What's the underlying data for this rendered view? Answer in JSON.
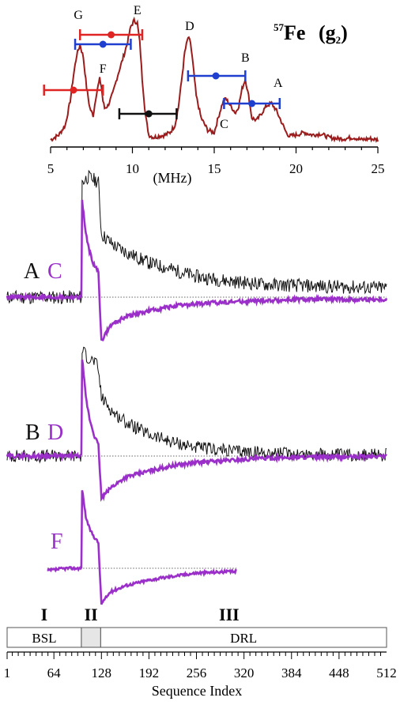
{
  "chart_data": [
    {
      "type": "line",
      "title": "57Fe (g2)",
      "title_parts": {
        "sup": "57",
        "element": "Fe",
        "paren_open": "(",
        "g": "g",
        "sub": "2",
        "paren_close": ")"
      },
      "xlabel": "(MHz)",
      "ylabel": "",
      "xlim": [
        5,
        25
      ],
      "x_ticks": [
        5,
        10,
        15,
        20,
        25
      ],
      "grid": false,
      "series": [
        {
          "color": "#9b1c1c",
          "x": [
            5.0,
            5.5,
            5.9,
            6.2,
            6.4,
            6.6,
            6.8,
            7.0,
            7.2,
            7.4,
            7.6,
            7.8,
            8.0,
            8.1,
            8.2,
            8.3,
            8.5,
            8.8,
            9.1,
            9.4,
            9.7,
            9.9,
            10.1,
            10.3,
            10.45,
            10.6,
            10.8,
            11.0,
            11.3,
            11.6,
            12.0,
            12.3,
            12.6,
            12.8,
            13.0,
            13.2,
            13.4,
            13.55,
            13.7,
            13.9,
            14.2,
            14.6,
            15.0,
            15.2,
            15.5,
            15.7,
            16.0,
            16.3,
            16.5,
            16.7,
            16.9,
            17.1,
            17.3,
            17.6,
            17.9,
            18.2,
            18.5,
            18.8,
            19.0,
            19.2,
            19.4,
            19.6,
            20.0,
            20.5,
            21.0,
            21.5,
            22.0,
            22.5,
            23.0,
            23.5,
            24.0,
            24.5,
            25.0
          ],
          "y": [
            0.02,
            0.06,
            0.14,
            0.34,
            0.55,
            0.72,
            0.8,
            0.7,
            0.45,
            0.28,
            0.22,
            0.4,
            0.52,
            0.46,
            0.34,
            0.28,
            0.3,
            0.4,
            0.55,
            0.68,
            0.82,
            0.95,
            1.0,
            0.98,
            0.82,
            0.52,
            0.22,
            0.06,
            0.04,
            0.05,
            0.06,
            0.08,
            0.14,
            0.28,
            0.5,
            0.74,
            0.86,
            0.82,
            0.64,
            0.38,
            0.2,
            0.1,
            0.08,
            0.18,
            0.32,
            0.36,
            0.3,
            0.24,
            0.3,
            0.44,
            0.52,
            0.38,
            0.2,
            0.18,
            0.24,
            0.3,
            0.32,
            0.26,
            0.2,
            0.14,
            0.08,
            0.05,
            0.06,
            0.08,
            0.06,
            0.07,
            0.04,
            0.03,
            0.03,
            0.04,
            0.02,
            0.03,
            0.02
          ]
        }
      ],
      "peak_labels": [
        {
          "label": "G",
          "x": 6.7
        },
        {
          "label": "F",
          "x": 8.2
        },
        {
          "label": "E",
          "x": 10.3
        },
        {
          "label": "D",
          "x": 13.5
        },
        {
          "label": "C",
          "x": 15.6
        },
        {
          "label": "B",
          "x": 16.9
        },
        {
          "label": "A",
          "x": 18.9
        }
      ],
      "error_bars": [
        {
          "color": "#e02424",
          "center": 8.7,
          "low": 6.8,
          "high": 10.6
        },
        {
          "color": "#1f3fcf",
          "center": 8.2,
          "low": 6.5,
          "high": 9.9
        },
        {
          "color": "#e02424",
          "center": 6.4,
          "low": 4.6,
          "high": 8.2
        },
        {
          "color": "#111111",
          "center": 11.0,
          "low": 9.2,
          "high": 12.7
        },
        {
          "color": "#1f3fcf",
          "center": 15.1,
          "low": 13.4,
          "high": 16.9
        },
        {
          "color": "#1f3fcf",
          "center": 17.3,
          "low": 15.6,
          "high": 19.0
        }
      ]
    },
    {
      "type": "line",
      "title": "",
      "xlabel": "Sequence Index",
      "ylabel": "",
      "xlim": [
        1,
        512
      ],
      "x_ticks": [
        1,
        64,
        128,
        192,
        256,
        320,
        384,
        448,
        512
      ],
      "grid": false,
      "regions": [
        {
          "numeral": "I",
          "label": "BSL",
          "start": 1,
          "end": 101
        },
        {
          "numeral": "II",
          "label": "",
          "start": 101,
          "end": 127
        },
        {
          "numeral": "III",
          "label": "DRL",
          "start": 127,
          "end": 512
        }
      ],
      "panels": [
        {
          "labels": [
            {
              "text": "A",
              "color": "#111111"
            },
            {
              "text": "C",
              "color": "#9b2fc9"
            }
          ],
          "series": [
            {
              "color": "#111111",
              "trace": "A",
              "end": 512,
              "x": [
                1,
                90,
                101,
                102,
                110,
                120,
                124,
                128,
                145,
                165,
                192,
                224,
                256,
                300,
                350,
                400,
                450,
                512
              ],
              "y": [
                0,
                0,
                0,
                1.0,
                1.05,
                1.02,
                1.0,
                0.55,
                0.45,
                0.38,
                0.3,
                0.24,
                0.18,
                0.14,
                0.11,
                0.1,
                0.09,
                0.08
              ]
            },
            {
              "color": "#9b2fc9",
              "trace": "C",
              "end": 512,
              "x": [
                1,
                90,
                101,
                102,
                107,
                112,
                118,
                124,
                126,
                128,
                140,
                160,
                192,
                224,
                256,
                300,
                350,
                400,
                450,
                512
              ],
              "y": [
                0,
                0,
                0,
                0.85,
                0.55,
                0.4,
                0.28,
                0.22,
                -0.1,
                -0.38,
                -0.25,
                -0.17,
                -0.12,
                -0.08,
                -0.06,
                -0.04,
                -0.03,
                -0.02,
                -0.02,
                -0.02
              ]
            }
          ]
        },
        {
          "labels": [
            {
              "text": "B",
              "color": "#111111"
            },
            {
              "text": "D",
              "color": "#9b2fc9"
            }
          ],
          "series": [
            {
              "color": "#111111",
              "trace": "B",
              "end": 512,
              "x": [
                1,
                90,
                101,
                102,
                110,
                120,
                124,
                128,
                145,
                165,
                192,
                224,
                256,
                300,
                350,
                400,
                450,
                512
              ],
              "y": [
                0,
                0,
                0,
                1.0,
                0.92,
                0.88,
                0.8,
                0.55,
                0.4,
                0.3,
                0.2,
                0.13,
                0.08,
                0.05,
                0.03,
                0.02,
                0.01,
                0.01
              ]
            },
            {
              "color": "#9b2fc9",
              "trace": "D",
              "end": 512,
              "x": [
                1,
                90,
                101,
                102,
                107,
                112,
                118,
                124,
                126,
                128,
                140,
                160,
                192,
                224,
                256,
                300,
                350,
                400,
                450,
                512
              ],
              "y": [
                0,
                0,
                0,
                0.92,
                0.55,
                0.35,
                0.2,
                0.1,
                -0.15,
                -0.4,
                -0.3,
                -0.2,
                -0.14,
                -0.09,
                -0.06,
                -0.04,
                -0.02,
                -0.01,
                -0.01,
                0
              ]
            }
          ]
        },
        {
          "labels": [
            {
              "text": "F",
              "color": "#9b2fc9"
            }
          ],
          "series": [
            {
              "color": "#9b2fc9",
              "trace": "F",
              "end": 310,
              "x": [
                55,
                80,
                101,
                102,
                107,
                112,
                118,
                124,
                126,
                128,
                140,
                160,
                192,
                224,
                256,
                280,
                310
              ],
              "y": [
                -0.03,
                0,
                0,
                1.0,
                0.65,
                0.5,
                0.4,
                0.32,
                -0.1,
                -0.45,
                -0.3,
                -0.22,
                -0.15,
                -0.1,
                -0.06,
                -0.05,
                -0.04
              ]
            }
          ]
        }
      ]
    }
  ]
}
